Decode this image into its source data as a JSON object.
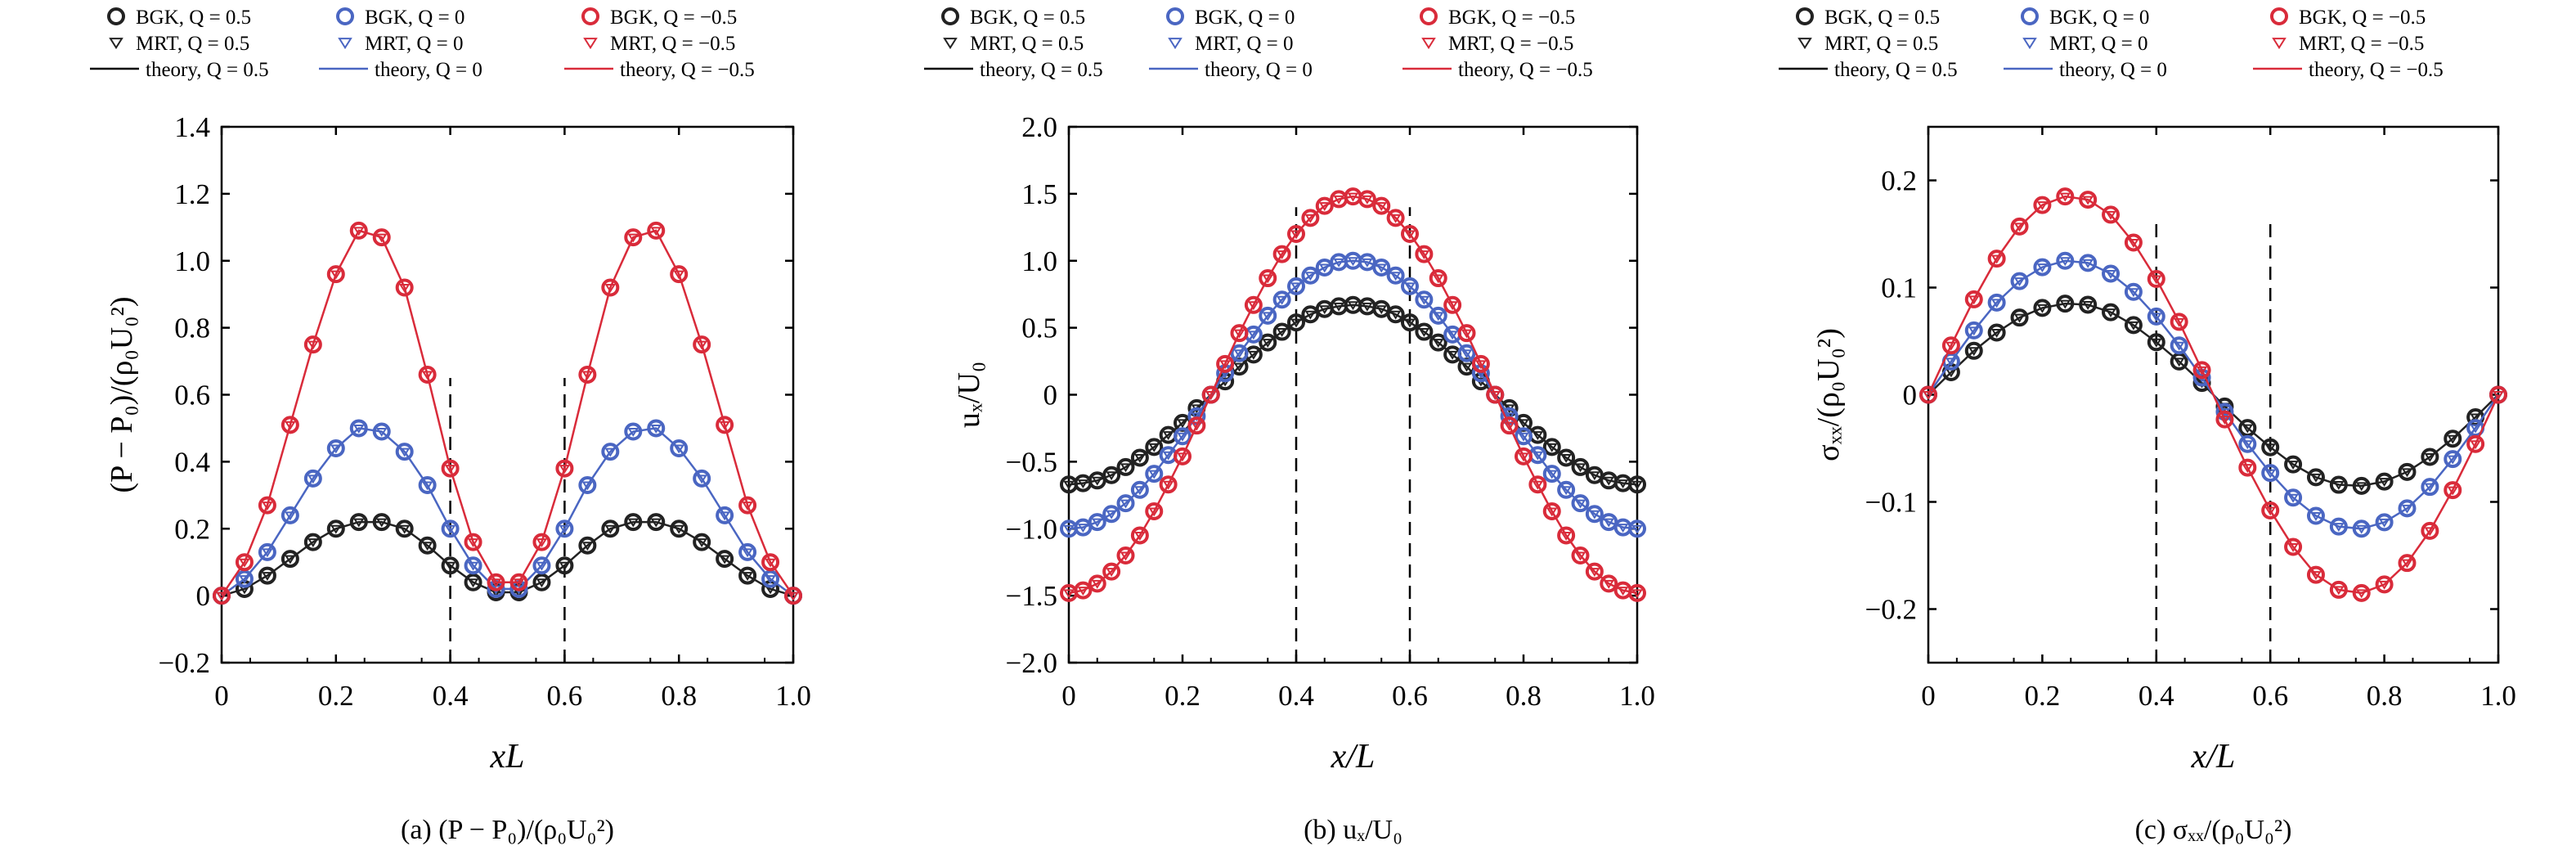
{
  "colors": {
    "q_pos": "#222222",
    "q_zero": "#4a66c2",
    "q_neg": "#d92b3a",
    "axis": "#000000",
    "sample_line": "#000000"
  },
  "markers": {
    "bgk": "circle",
    "mrt": "triangle-down"
  },
  "panels": [
    {
      "caption": "(a) (P − P₀)/(ρ₀U₀²)",
      "legend": [
        "BGK, Q = 0.5",
        "BGK, Q = 0",
        "BGK, Q = −0.5",
        "MRT, Q = 0.5",
        "MRT, Q = 0",
        "MRT, Q = −0.5",
        "theory, Q = 0.5",
        "theory, Q = 0",
        "theory, Q = −0.5"
      ]
    },
    {
      "caption": "(b) uₓ/U₀",
      "legend": [
        "BGK, Q = 0.5",
        "BGK, Q = 0",
        "BGK, Q = −0.5",
        "MRT, Q = 0.5",
        "MRT, Q = 0",
        "MRT, Q = −0.5",
        "theory, Q = 0.5",
        "theory, Q = 0",
        "theory, Q = −0.5"
      ]
    },
    {
      "caption": "(c) σₓₓ/(ρ₀U₀²)",
      "legend": [
        "BGK, Q = 0.5",
        "BGK, Q = 0",
        "BGK, Q = −0.5",
        "MRT, Q = 0.5",
        "MRT, Q = 0",
        "MRT, Q = −0.5",
        "theory, Q = 0.5",
        "theory, Q = 0",
        "theory, Q = −0.5"
      ]
    }
  ],
  "chart_data": [
    {
      "type": "line",
      "xlabel": "xL",
      "ylabel": "(P − P₀)/(ρ₀U₀²)",
      "xlim": [
        0,
        1.0
      ],
      "ylim": [
        -0.2,
        1.4
      ],
      "xticks": [
        "0",
        "0.2",
        "0.4",
        "0.6",
        "0.8",
        "1.0"
      ],
      "yticks": [
        "−0.2",
        "0",
        "0.2",
        "0.4",
        "0.6",
        "0.8",
        "1.0",
        "1.2",
        "1.4"
      ],
      "vlines": [
        0.4,
        0.6
      ],
      "vline_ymax": 0.65,
      "x": [
        0,
        0.04,
        0.08,
        0.12,
        0.16,
        0.2,
        0.24,
        0.28,
        0.32,
        0.36,
        0.4,
        0.44,
        0.48,
        0.52,
        0.56,
        0.6,
        0.64,
        0.68,
        0.72,
        0.76,
        0.8,
        0.84,
        0.88,
        0.92,
        0.96,
        1.0
      ],
      "series": [
        {
          "name": "Q = 0.5",
          "values": [
            0,
            0.02,
            0.06,
            0.11,
            0.16,
            0.2,
            0.22,
            0.22,
            0.2,
            0.15,
            0.09,
            0.04,
            0.01,
            0.01,
            0.04,
            0.09,
            0.15,
            0.2,
            0.22,
            0.22,
            0.2,
            0.16,
            0.11,
            0.06,
            0.02,
            0
          ]
        },
        {
          "name": "Q = 0",
          "values": [
            0,
            0.05,
            0.13,
            0.24,
            0.35,
            0.44,
            0.5,
            0.49,
            0.43,
            0.33,
            0.2,
            0.09,
            0.02,
            0.02,
            0.09,
            0.2,
            0.33,
            0.43,
            0.49,
            0.5,
            0.44,
            0.35,
            0.24,
            0.13,
            0.05,
            0
          ]
        },
        {
          "name": "Q = −0.5",
          "values": [
            0,
            0.1,
            0.27,
            0.51,
            0.75,
            0.96,
            1.09,
            1.07,
            0.92,
            0.66,
            0.38,
            0.16,
            0.04,
            0.04,
            0.16,
            0.38,
            0.66,
            0.92,
            1.07,
            1.09,
            0.96,
            0.75,
            0.51,
            0.27,
            0.1,
            0
          ]
        }
      ]
    },
    {
      "type": "line",
      "xlabel": "x/L",
      "ylabel": "uₓ/U₀",
      "xlim": [
        0,
        1.0
      ],
      "ylim": [
        -2.0,
        2.0
      ],
      "xticks": [
        "0",
        "0.2",
        "0.4",
        "0.6",
        "0.8",
        "1.0"
      ],
      "yticks": [
        "−2.0",
        "−1.5",
        "−1.0",
        "−0.5",
        "0",
        "0.5",
        "1.0",
        "1.5",
        "2.0"
      ],
      "vlines": [
        0.4,
        0.6
      ],
      "vline_ymax": 1.4,
      "x": [
        0,
        0.025,
        0.05,
        0.075,
        0.1,
        0.125,
        0.15,
        0.175,
        0.2,
        0.225,
        0.25,
        0.275,
        0.3,
        0.325,
        0.35,
        0.375,
        0.4,
        0.425,
        0.45,
        0.475,
        0.5,
        0.525,
        0.55,
        0.575,
        0.6,
        0.625,
        0.65,
        0.675,
        0.7,
        0.725,
        0.75,
        0.775,
        0.8,
        0.825,
        0.85,
        0.875,
        0.9,
        0.925,
        0.95,
        0.975,
        1.0
      ],
      "series": [
        {
          "name": "Q = 0.5",
          "values": [
            -0.67,
            -0.66,
            -0.64,
            -0.6,
            -0.54,
            -0.47,
            -0.39,
            -0.3,
            -0.21,
            -0.1,
            0.0,
            0.1,
            0.21,
            0.3,
            0.39,
            0.47,
            0.54,
            0.6,
            0.64,
            0.66,
            0.67,
            0.66,
            0.64,
            0.6,
            0.54,
            0.47,
            0.39,
            0.3,
            0.21,
            0.1,
            0.0,
            -0.1,
            -0.21,
            -0.3,
            -0.39,
            -0.47,
            -0.54,
            -0.6,
            -0.64,
            -0.66,
            -0.67
          ]
        },
        {
          "name": "Q = 0",
          "values": [
            -1.0,
            -0.99,
            -0.95,
            -0.89,
            -0.81,
            -0.71,
            -0.59,
            -0.45,
            -0.31,
            -0.16,
            0.0,
            0.16,
            0.31,
            0.45,
            0.59,
            0.71,
            0.81,
            0.89,
            0.95,
            0.99,
            1.0,
            0.99,
            0.95,
            0.89,
            0.81,
            0.71,
            0.59,
            0.45,
            0.31,
            0.16,
            0.0,
            -0.16,
            -0.31,
            -0.45,
            -0.59,
            -0.71,
            -0.81,
            -0.89,
            -0.95,
            -0.99,
            -1.0
          ]
        },
        {
          "name": "Q = −0.5",
          "values": [
            -1.48,
            -1.46,
            -1.41,
            -1.32,
            -1.2,
            -1.05,
            -0.87,
            -0.67,
            -0.46,
            -0.23,
            0.0,
            0.23,
            0.46,
            0.67,
            0.87,
            1.05,
            1.2,
            1.32,
            1.41,
            1.46,
            1.48,
            1.46,
            1.41,
            1.32,
            1.2,
            1.05,
            0.87,
            0.67,
            0.46,
            0.23,
            0.0,
            -0.23,
            -0.46,
            -0.67,
            -0.87,
            -1.05,
            -1.2,
            -1.32,
            -1.41,
            -1.46,
            -1.48
          ]
        }
      ]
    },
    {
      "type": "line",
      "xlabel": "x/L",
      "ylabel": "σₓₓ/(ρ₀U₀²)",
      "xlim": [
        0,
        1.0
      ],
      "ylim": [
        -0.25,
        0.25
      ],
      "xticks": [
        "0",
        "0.2",
        "0.4",
        "0.6",
        "0.8",
        "1.0"
      ],
      "yticks": [
        "−0.2",
        "−0.1",
        "0",
        "0.1",
        "0.2"
      ],
      "yticks_at": [
        -0.2,
        -0.1,
        0,
        0.1,
        0.2
      ],
      "vlines": [
        0.4,
        0.6
      ],
      "vline_ymax": 0.16,
      "x": [
        0,
        0.04,
        0.08,
        0.12,
        0.16,
        0.2,
        0.24,
        0.28,
        0.32,
        0.36,
        0.4,
        0.44,
        0.48,
        0.52,
        0.56,
        0.6,
        0.64,
        0.68,
        0.72,
        0.76,
        0.8,
        0.84,
        0.88,
        0.92,
        0.96,
        1.0
      ],
      "series": [
        {
          "name": "Q = 0.5",
          "values": [
            0,
            0.021,
            0.041,
            0.058,
            0.072,
            0.081,
            0.085,
            0.084,
            0.077,
            0.065,
            0.049,
            0.031,
            0.011,
            -0.011,
            -0.031,
            -0.049,
            -0.065,
            -0.077,
            -0.084,
            -0.085,
            -0.081,
            -0.072,
            -0.058,
            -0.041,
            -0.021,
            0
          ]
        },
        {
          "name": "Q = 0",
          "values": [
            0,
            0.031,
            0.06,
            0.086,
            0.106,
            0.119,
            0.125,
            0.123,
            0.113,
            0.096,
            0.073,
            0.046,
            0.016,
            -0.016,
            -0.046,
            -0.073,
            -0.096,
            -0.113,
            -0.123,
            -0.125,
            -0.119,
            -0.106,
            -0.086,
            -0.06,
            -0.031,
            0
          ]
        },
        {
          "name": "Q = −0.5",
          "values": [
            0,
            0.046,
            0.089,
            0.127,
            0.157,
            0.177,
            0.185,
            0.182,
            0.168,
            0.142,
            0.108,
            0.068,
            0.023,
            -0.023,
            -0.068,
            -0.108,
            -0.142,
            -0.168,
            -0.182,
            -0.185,
            -0.177,
            -0.157,
            -0.127,
            -0.089,
            -0.046,
            0
          ]
        }
      ]
    }
  ]
}
